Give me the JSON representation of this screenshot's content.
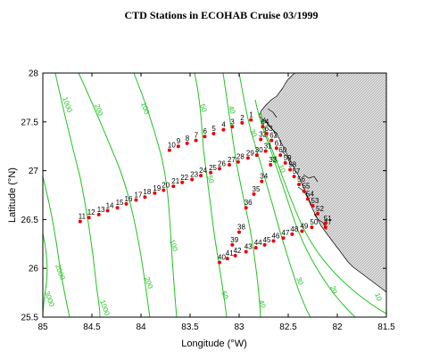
{
  "map": {
    "title": "CTD Stations in ECOHAB  Cruise 03/1999",
    "xlabel": "Longitude (°W)",
    "ylabel": "Latitude (°N)",
    "xlim": [
      85,
      81.5
    ],
    "ylim": [
      25.5,
      28
    ],
    "x_ticks": [
      85,
      84.5,
      84,
      83.5,
      83,
      82.5,
      82,
      81.5
    ],
    "y_ticks": [
      25.5,
      26,
      26.5,
      27,
      27.5,
      28
    ],
    "x_tick_labels": [
      "85",
      "84.5",
      "84",
      "83.5",
      "83",
      "82.5",
      "82",
      "81.5"
    ],
    "y_tick_labels": [
      "25.5",
      "26",
      "26.5",
      "27",
      "27.5",
      "28"
    ],
    "colors": {
      "contour": "#22c322",
      "station": "#e80000",
      "land_fill": "#d8d8d8",
      "coast": "#000000",
      "frame": "#000000"
    },
    "contour_labels": [
      "10",
      "20",
      "30",
      "40",
      "50",
      "100",
      "200",
      "1000",
      "2000",
      "3000"
    ],
    "stations": [
      {
        "id": "1",
        "lon": 82.88,
        "lat": 27.52
      },
      {
        "id": "2",
        "lon": 82.97,
        "lat": 27.49
      },
      {
        "id": "3",
        "lon": 83.07,
        "lat": 27.45
      },
      {
        "id": "4",
        "lon": 83.16,
        "lat": 27.42
      },
      {
        "id": "5",
        "lon": 83.26,
        "lat": 27.38
      },
      {
        "id": "6",
        "lon": 83.35,
        "lat": 27.35
      },
      {
        "id": "7",
        "lon": 83.44,
        "lat": 27.31
      },
      {
        "id": "8",
        "lon": 83.53,
        "lat": 27.28
      },
      {
        "id": "9",
        "lon": 83.62,
        "lat": 27.25
      },
      {
        "id": "10",
        "lon": 83.71,
        "lat": 27.21
      },
      {
        "id": "11",
        "lon": 84.62,
        "lat": 26.48
      },
      {
        "id": "12",
        "lon": 84.53,
        "lat": 26.52
      },
      {
        "id": "13",
        "lon": 84.43,
        "lat": 26.55
      },
      {
        "id": "14",
        "lon": 84.34,
        "lat": 26.59
      },
      {
        "id": "15",
        "lon": 84.24,
        "lat": 26.62
      },
      {
        "id": "16",
        "lon": 84.15,
        "lat": 26.66
      },
      {
        "id": "17",
        "lon": 84.05,
        "lat": 26.7
      },
      {
        "id": "18",
        "lon": 83.96,
        "lat": 26.73
      },
      {
        "id": "19",
        "lon": 83.86,
        "lat": 26.77
      },
      {
        "id": "20",
        "lon": 83.77,
        "lat": 26.8
      },
      {
        "id": "21",
        "lon": 83.67,
        "lat": 26.84
      },
      {
        "id": "22",
        "lon": 83.58,
        "lat": 26.88
      },
      {
        "id": "23",
        "lon": 83.48,
        "lat": 26.91
      },
      {
        "id": "24",
        "lon": 83.39,
        "lat": 26.95
      },
      {
        "id": "25",
        "lon": 83.29,
        "lat": 26.98
      },
      {
        "id": "26",
        "lon": 83.2,
        "lat": 27.02
      },
      {
        "id": "27",
        "lon": 83.1,
        "lat": 27.06
      },
      {
        "id": "28",
        "lon": 83.01,
        "lat": 27.09
      },
      {
        "id": "29",
        "lon": 82.91,
        "lat": 27.13
      },
      {
        "id": "30",
        "lon": 82.82,
        "lat": 27.16
      },
      {
        "id": "31",
        "lon": 82.73,
        "lat": 27.2
      },
      {
        "id": "32",
        "lon": 82.78,
        "lat": 27.32
      },
      {
        "id": "33",
        "lon": 82.68,
        "lat": 27.06
      },
      {
        "id": "34",
        "lon": 82.77,
        "lat": 26.89
      },
      {
        "id": "35",
        "lon": 82.85,
        "lat": 26.76
      },
      {
        "id": "36",
        "lon": 82.93,
        "lat": 26.62
      },
      {
        "id": "37",
        "lon": 82.12,
        "lat": 26.42
      },
      {
        "id": "38",
        "lon": 83.0,
        "lat": 26.37
      },
      {
        "id": "39",
        "lon": 83.07,
        "lat": 26.24
      },
      {
        "id": "40",
        "lon": 83.2,
        "lat": 26.06
      },
      {
        "id": "41",
        "lon": 83.12,
        "lat": 26.1
      },
      {
        "id": "42",
        "lon": 83.04,
        "lat": 26.13
      },
      {
        "id": "43",
        "lon": 82.93,
        "lat": 26.17
      },
      {
        "id": "44",
        "lon": 82.83,
        "lat": 26.21
      },
      {
        "id": "45",
        "lon": 82.74,
        "lat": 26.24
      },
      {
        "id": "46",
        "lon": 82.65,
        "lat": 26.28
      },
      {
        "id": "47",
        "lon": 82.55,
        "lat": 26.31
      },
      {
        "id": "48",
        "lon": 82.46,
        "lat": 26.35
      },
      {
        "id": "49",
        "lon": 82.36,
        "lat": 26.38
      },
      {
        "id": "50",
        "lon": 82.26,
        "lat": 26.42
      },
      {
        "id": "51",
        "lon": 82.12,
        "lat": 26.46
      },
      {
        "id": "52",
        "lon": 82.2,
        "lat": 26.56
      },
      {
        "id": "53",
        "lon": 82.25,
        "lat": 26.64
      },
      {
        "id": "54",
        "lon": 82.3,
        "lat": 26.71
      },
      {
        "id": "55",
        "lon": 82.34,
        "lat": 26.79
      },
      {
        "id": "56",
        "lon": 82.39,
        "lat": 26.86
      },
      {
        "id": "57",
        "lon": 82.44,
        "lat": 26.94
      },
      {
        "id": "58",
        "lon": 82.48,
        "lat": 27.01
      },
      {
        "id": "59",
        "lon": 82.53,
        "lat": 27.08
      },
      {
        "id": "60",
        "lon": 82.58,
        "lat": 27.16
      },
      {
        "id": "61",
        "lon": 82.62,
        "lat": 27.23
      },
      {
        "id": "62",
        "lon": 82.67,
        "lat": 27.31
      },
      {
        "id": "63",
        "lon": 82.72,
        "lat": 27.38
      },
      {
        "id": "64",
        "lon": 82.76,
        "lat": 27.45
      }
    ]
  }
}
